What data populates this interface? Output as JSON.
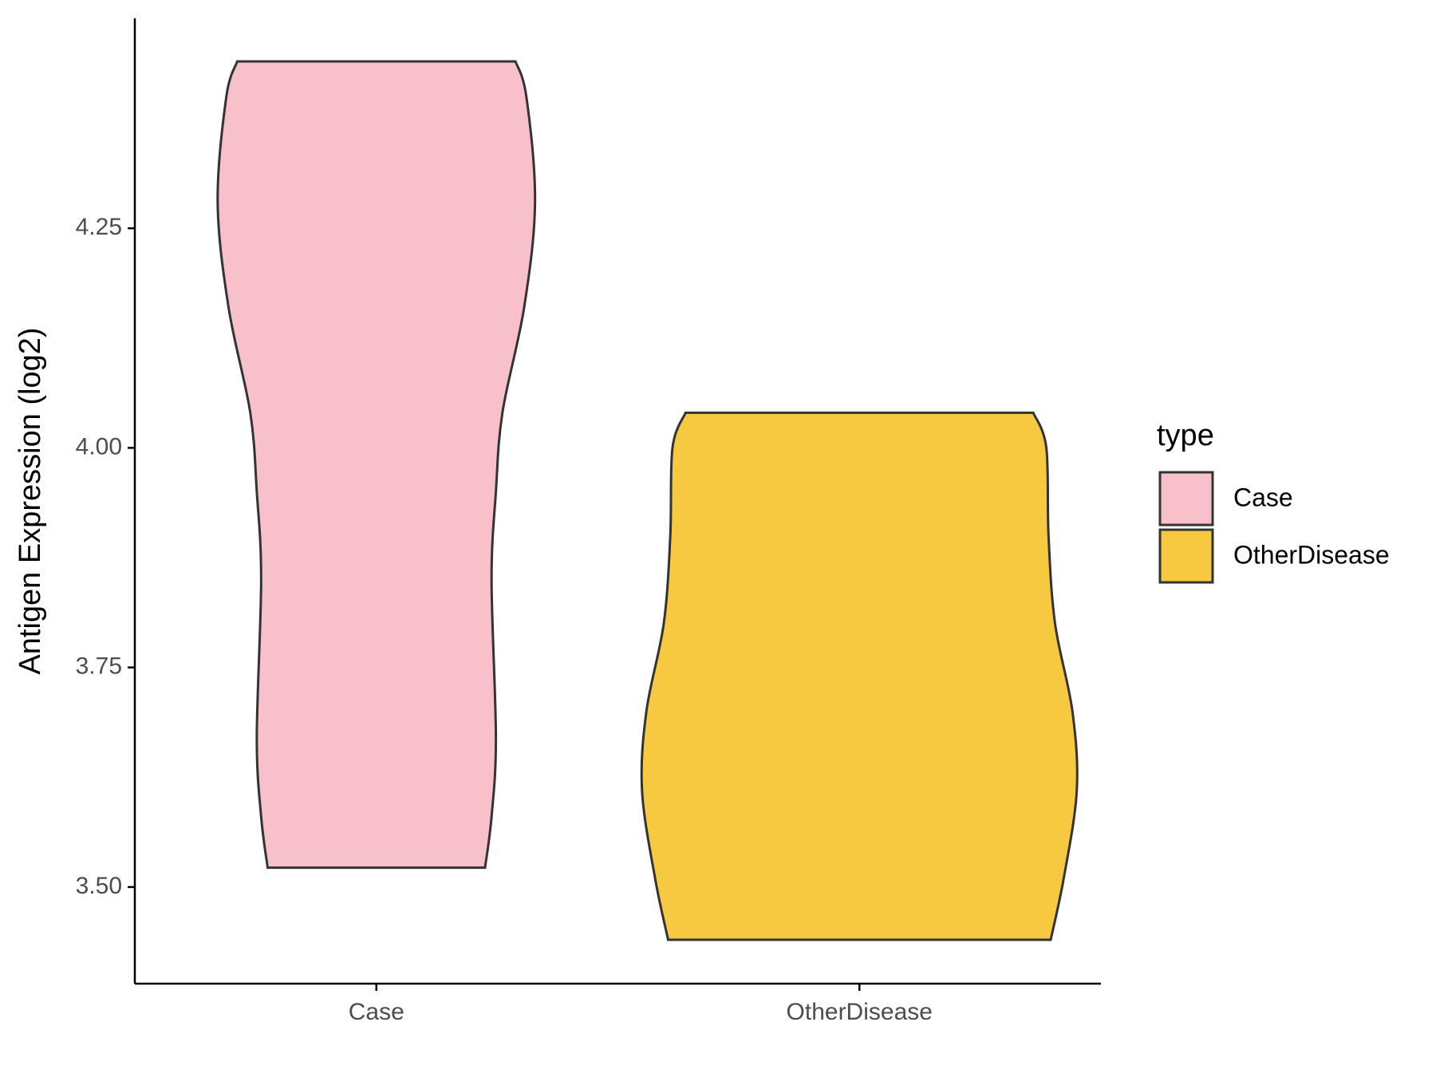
{
  "chart_data": {
    "type": "violin",
    "ylabel": "Antigen Expression (log2)",
    "categories": [
      "Case",
      "OtherDisease"
    ],
    "legend_title": "type",
    "legend": "right",
    "ylim": [
      3.39,
      4.489
    ],
    "yticks": [
      {
        "value": 3.5,
        "label": "3.50"
      },
      3.75,
      {
        "value": 4,
        "label": "4.00"
      },
      4.25
    ],
    "series": [
      {
        "name": "Case",
        "color": "#f7c0cb",
        "y": [
          4.44,
          4.4,
          4.28,
          4.16,
          4.04,
          3.95,
          3.85,
          3.67,
          3.58,
          3.522
        ],
        "density": [
          0.64,
          0.69,
          0.73,
          0.68,
          0.58,
          0.55,
          0.53,
          0.55,
          0.53,
          0.5
        ]
      },
      {
        "name": "OtherDisease",
        "color": "#f6c940",
        "y": [
          4.04,
          4.0,
          3.9,
          3.8,
          3.7,
          3.61,
          3.51,
          3.44
        ],
        "density": [
          0.8,
          0.86,
          0.87,
          0.9,
          0.98,
          1.0,
          0.94,
          0.88
        ]
      }
    ]
  }
}
